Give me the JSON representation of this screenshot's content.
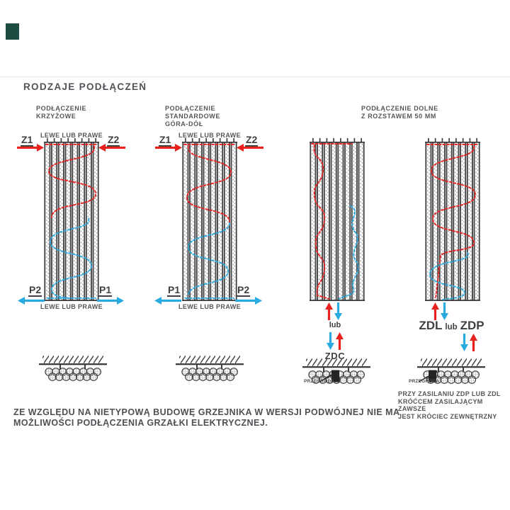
{
  "header": {
    "title": "RODZAJE PODŁĄCZEŃ"
  },
  "diagram_cross": {
    "title_line1": "PODŁĄCZENIE",
    "title_line2": "KRZYŻOWE",
    "top_label": "LEWE LUB PRAWE",
    "bottom_label": "LEWE LUB PRAWE",
    "port_top_left": "Z1",
    "port_top_right": "Z2",
    "port_bottom_left": "P2",
    "port_bottom_right": "P1"
  },
  "diagram_standard": {
    "title_line1": "PODŁĄCZENIE",
    "title_line2": "STANDARDOWE",
    "title_line3": "GÓRA-DÓŁ",
    "top_label": "LEWE LUB PRAWE",
    "bottom_label": "LEWE LUB PRAWE",
    "port_top_left": "Z1",
    "port_top_right": "Z2",
    "port_bottom_left": "P1",
    "port_bottom_right": "P2"
  },
  "diagram_bottom": {
    "title_line1": "PODŁĄCZENIE DOLNE",
    "title_line2": "Z ROZSTAWEM 50 MM",
    "or_label": "lub",
    "connection_code": "ZDC",
    "partition_label": "PRZEGRODA"
  },
  "diagram_bottom_50": {
    "code_left": "ZDL",
    "or_label": "lub",
    "code_right": "ZDP",
    "partition_label": "PRZEGRODA",
    "note_line1": "PRZY ZASILANIU ZDP LUB ZDL",
    "note_line2": "KRÓĆCEM ZASILAJĄCYM ZAWSZE",
    "note_line3": "JEST KRÓCIEC ZEWNĘTRZNY"
  },
  "footer": {
    "note_line1": "ZE WZGLĘDU NA NIETYPOWĄ BUDOWĘ GRZEJNIKA W WERSJI PODWÓJNEJ NIE MA",
    "note_line2": "MOŻLIWOŚCI PODŁĄCZENIA GRZAŁKI ELEKTRYCZNEJ."
  },
  "colors": {
    "red": "#e8211d",
    "blue": "#29abe2",
    "ink": "#55565a"
  }
}
